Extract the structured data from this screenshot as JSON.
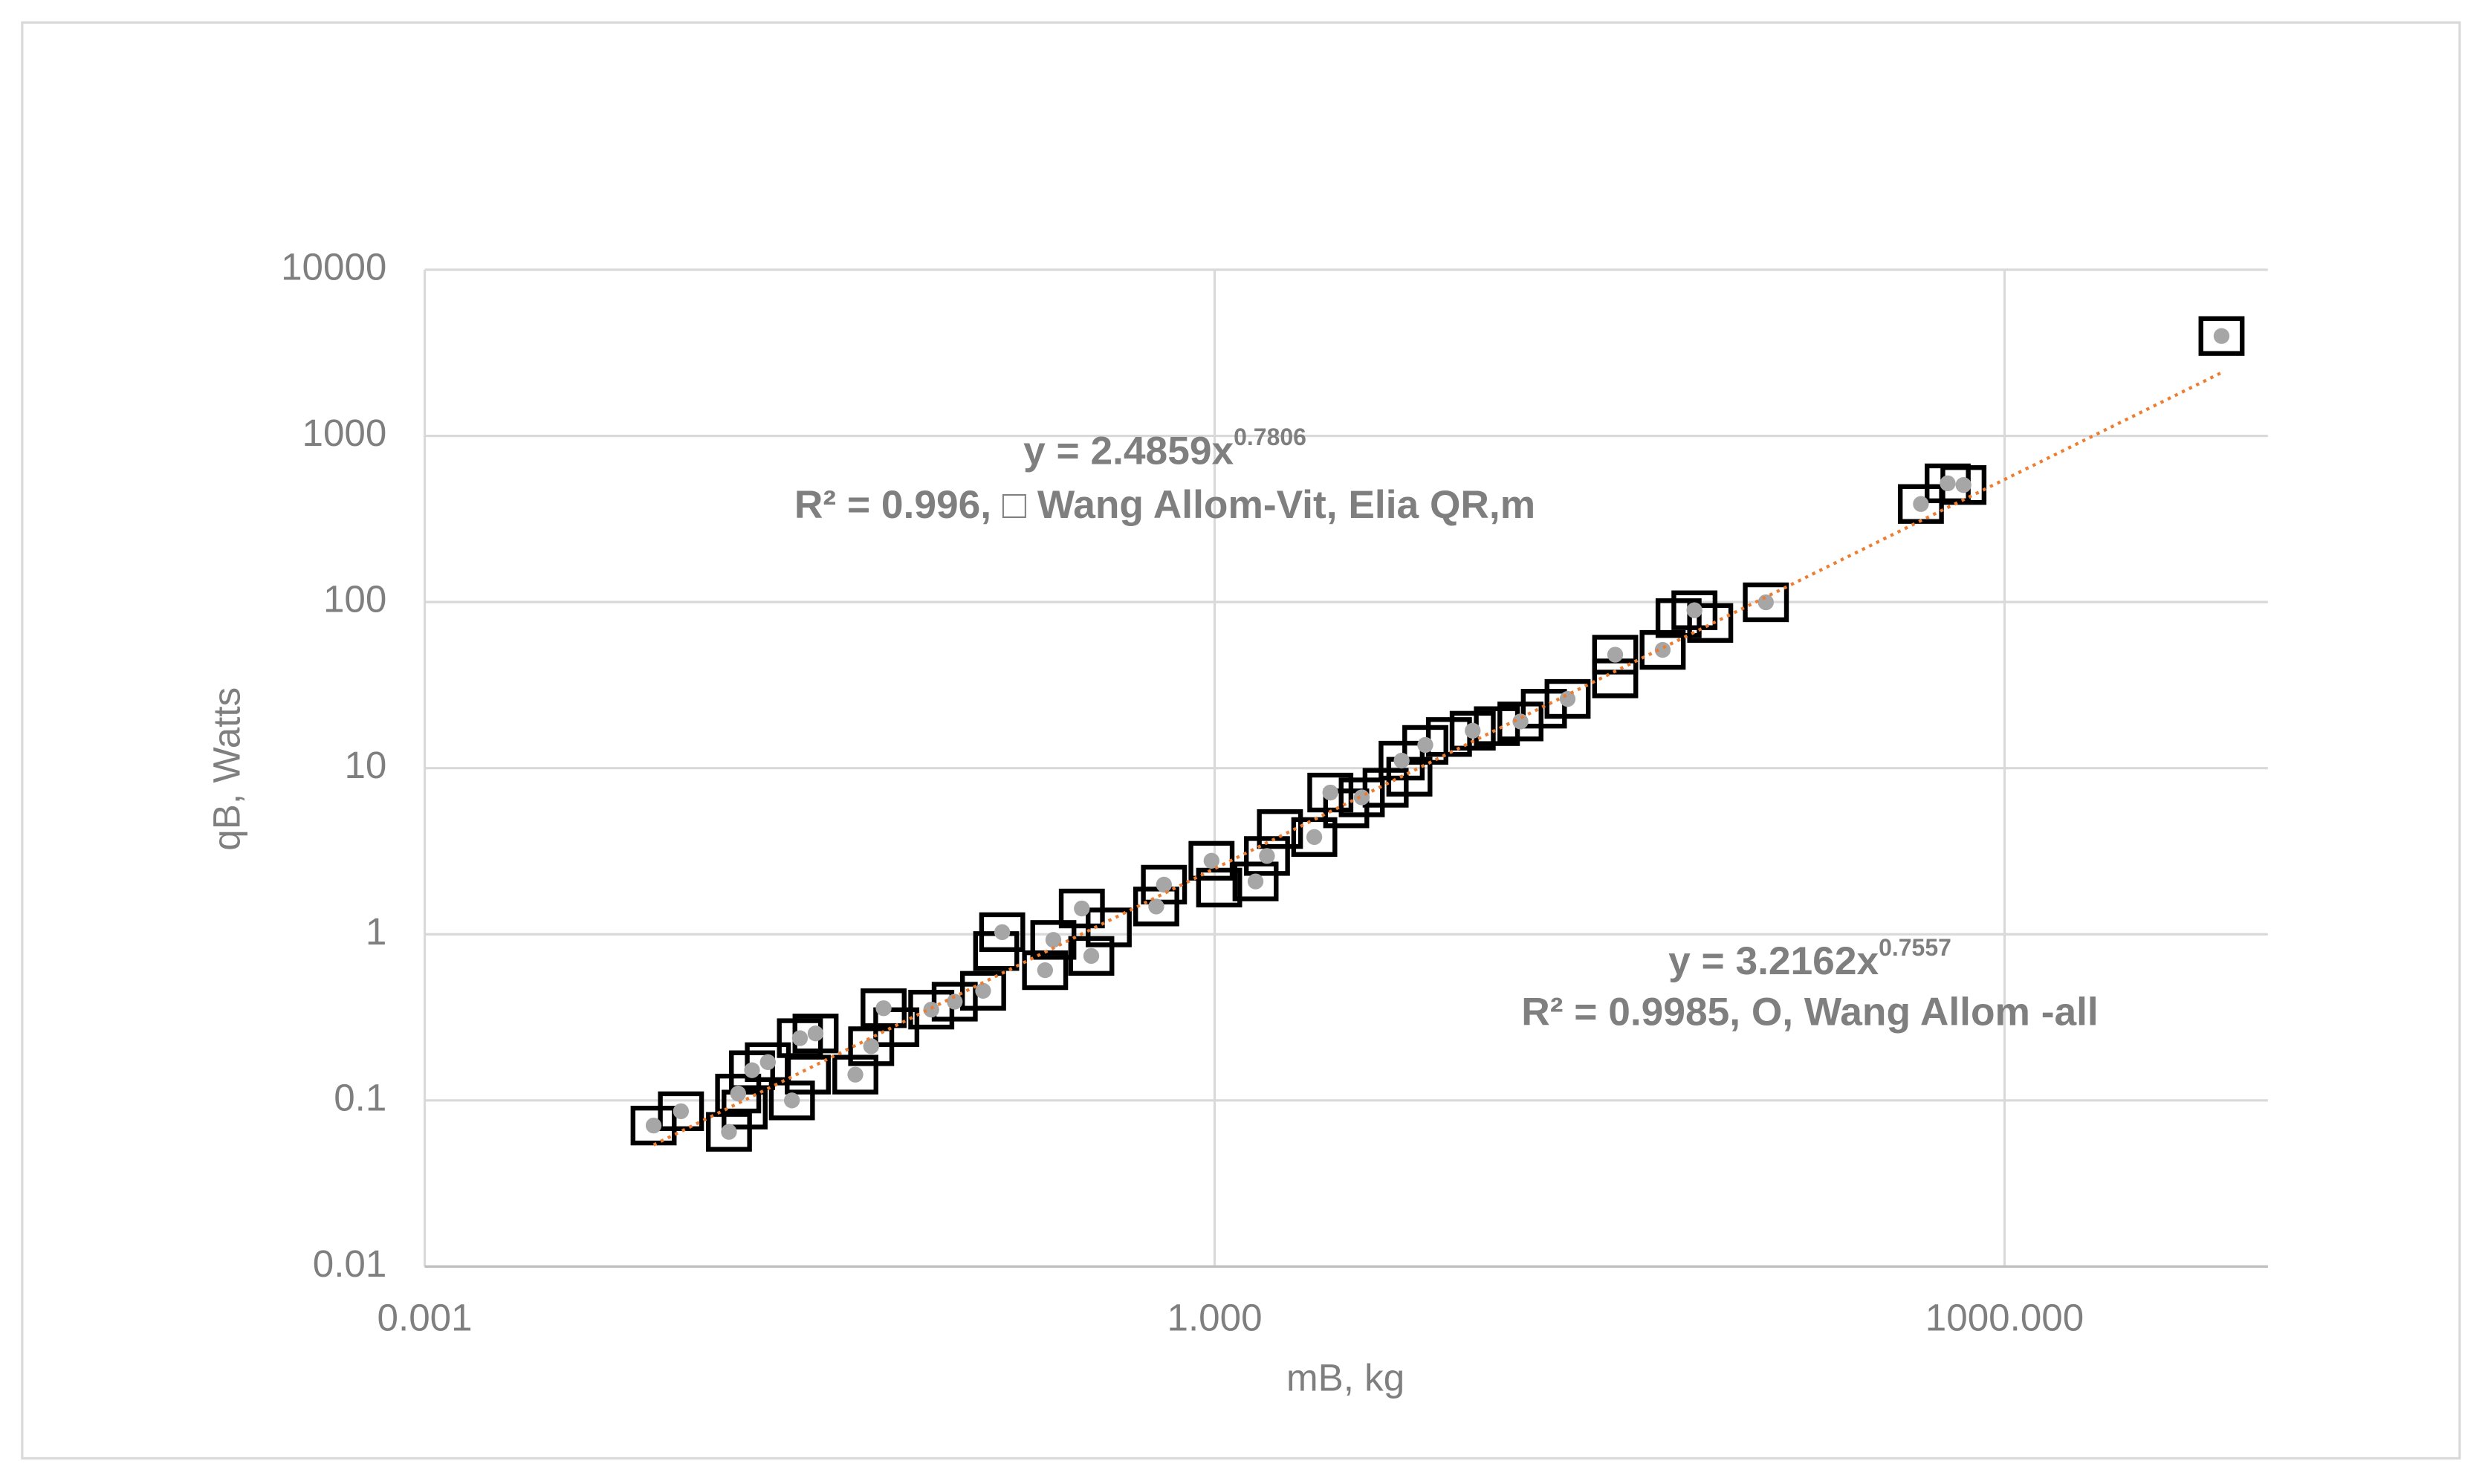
{
  "chart_data": {
    "type": "scatter",
    "x_label": "mB, kg",
    "y_label": "qB, Watts",
    "xlog": true,
    "ylog": true,
    "grid": true,
    "xlim": [
      0.001,
      10000
    ],
    "xticks": [
      0.001,
      {
        "value": 1,
        "label": "1.000"
      },
      {
        "value": 1000,
        "label": "1000.000"
      }
    ],
    "ylim": [
      0.01,
      10000
    ],
    "yticks": [
      0.01,
      0.1,
      1,
      10,
      100,
      1000,
      10000
    ],
    "series": [
      {
        "marker": "square",
        "color": "#000000",
        "x": [
          0.0074,
          0.0094,
          0.0143,
          0.0155,
          0.0164,
          0.0175,
          0.0201,
          0.0248,
          0.0266,
          0.0305,
          0.0285,
          0.0432,
          0.0496,
          0.0553,
          0.0618,
          0.0839,
          0.103,
          0.132,
          0.156,
          0.148,
          0.227,
          0.244,
          0.313,
          0.34,
          0.396,
          0.6,
          0.642,
          0.973,
          1.04,
          1.43,
          1.58,
          1.77,
          2.39,
          2.75,
          3.16,
          3.62,
          4.46,
          5.13,
          5.49,
          6.31,
          7.76,
          9.55,
          11.8,
          14.5,
          17.8,
          21.9,
          33.2,
          33.2,
          50.3,
          57.8,
          66.4,
          76.2,
          124,
          481,
          608,
          698,
          6668
        ],
        "values": [
          0.0706,
          0.0861,
          0.0647,
          0.11,
          0.0881,
          0.152,
          0.17,
          0.1,
          0.237,
          0.253,
          0.143,
          0.143,
          0.212,
          0.359,
          0.276,
          0.352,
          0.393,
          0.457,
          1.03,
          0.793,
          0.608,
          0.925,
          1.43,
          0.741,
          1.1,
          1.47,
          1.99,
          2.77,
          1.91,
          2.08,
          2.96,
          4.3,
          3.85,
          7.13,
          5.73,
          6.67,
          7.62,
          11.1,
          8.88,
          13.8,
          15.4,
          16.8,
          17.9,
          19.1,
          22.8,
          26.1,
          48.2,
          34.7,
          51.5,
          80,
          89.2,
          74.8,
          99.6,
          389,
          518,
          506,
          3990
        ]
      },
      {
        "marker": "dot",
        "color": "#a6a6a6",
        "x": [
          0.0074,
          0.0094,
          0.0143,
          0.0155,
          0.0175,
          0.0201,
          0.0248,
          0.0266,
          0.0305,
          0.0432,
          0.0496,
          0.0553,
          0.0839,
          0.103,
          0.132,
          0.156,
          0.227,
          0.244,
          0.313,
          0.34,
          0.6,
          0.642,
          0.973,
          1.43,
          1.58,
          2.39,
          2.75,
          3.62,
          5.13,
          6.31,
          9.55,
          14.5,
          21.9,
          33.2,
          50.3,
          66.4,
          124,
          481,
          608,
          698,
          6668
        ],
        "values": [
          0.0706,
          0.0861,
          0.0647,
          0.11,
          0.152,
          0.17,
          0.1,
          0.237,
          0.253,
          0.143,
          0.212,
          0.359,
          0.352,
          0.393,
          0.457,
          1.03,
          0.608,
          0.925,
          1.43,
          0.741,
          1.47,
          1.99,
          2.77,
          2.08,
          2.96,
          3.85,
          7.13,
          6.67,
          11.1,
          13.8,
          16.8,
          19.1,
          26.1,
          48.2,
          51.5,
          89.2,
          99.6,
          389,
          518,
          506,
          3990
        ]
      }
    ],
    "trendline": {
      "color": "#ed7d31",
      "x": [
        0.0074,
        6668
      ],
      "values": [
        0.054,
        2402
      ]
    },
    "annotations": [
      {
        "equation": "y = 2.4859x",
        "exponent": "0.7806",
        "note": "R² = 0.996,   □ Wang Allom-Vit, Elia  QR,m"
      },
      {
        "equation": "y = 3.2162x",
        "exponent": "0.7557",
        "note": "R² = 0.9985, O,  Wang Allom -all"
      }
    ]
  }
}
